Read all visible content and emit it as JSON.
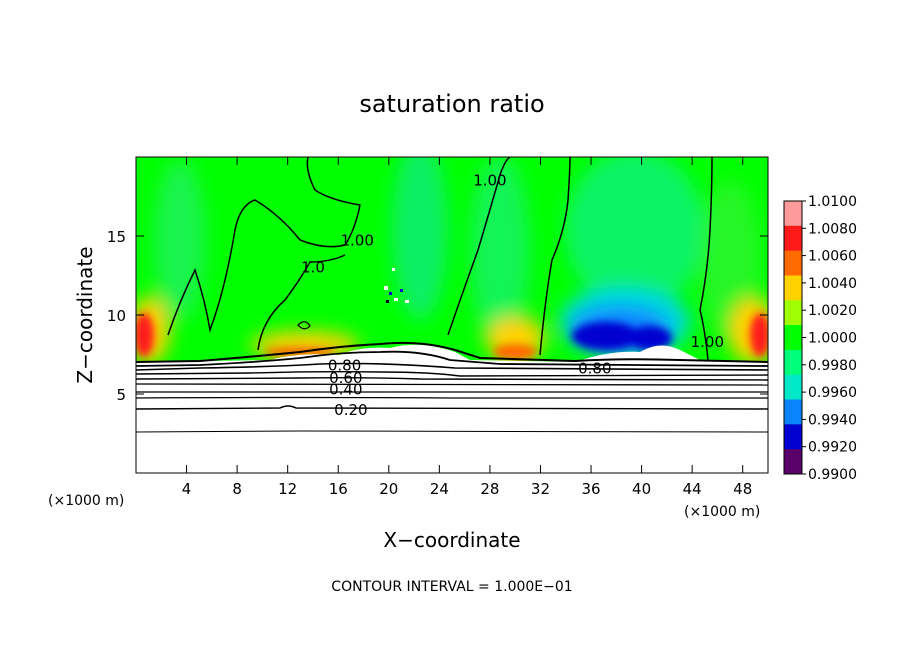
{
  "chart_data": {
    "type": "heatmap",
    "title": "saturation ratio",
    "xlabel": "X−coordinate",
    "ylabel": "Z−coordinate",
    "x_unit_label": "(×1000 m)",
    "y_unit_label": "(×1000 m)",
    "xlim": [
      0,
      50
    ],
    "ylim": [
      0,
      20
    ],
    "x_ticks": [
      "4",
      "8",
      "12",
      "16",
      "20",
      "24",
      "28",
      "32",
      "36",
      "40",
      "44",
      "48"
    ],
    "x_tick_values": [
      4,
      8,
      12,
      16,
      20,
      24,
      28,
      32,
      36,
      40,
      44,
      48
    ],
    "y_ticks": [
      "5",
      "10",
      "15"
    ],
    "y_tick_values": [
      5,
      10,
      15
    ],
    "contour_note": "CONTOUR INTERVAL = 1.000E−01",
    "contour_labels": [
      {
        "text": "1.00",
        "x": 28.0,
        "z": 18.5
      },
      {
        "text": "1.00",
        "x": 17.5,
        "z": 14.7
      },
      {
        "text": "1.0",
        "x": 14.0,
        "z": 13.0
      },
      {
        "text": "1.00",
        "x": 45.2,
        "z": 8.3
      },
      {
        "text": "0.80",
        "x": 16.5,
        "z": 6.8
      },
      {
        "text": "0.60",
        "x": 16.6,
        "z": 6.0
      },
      {
        "text": "0.40",
        "x": 16.6,
        "z": 5.3
      },
      {
        "text": "0.20",
        "x": 17.0,
        "z": 4.0
      },
      {
        "text": "0.80",
        "x": 36.3,
        "z": 6.6
      }
    ],
    "colorbar": {
      "levels": [
        "1.0100",
        "1.0080",
        "1.0060",
        "1.0040",
        "1.0020",
        "1.0000",
        "0.9980",
        "0.9960",
        "0.9940",
        "0.9920",
        "0.9900"
      ],
      "colors": [
        "#ff9a9a",
        "#ff1a1a",
        "#ff6a00",
        "#ffd200",
        "#a0ff00",
        "#00ff00",
        "#00ff7a",
        "#00e8c8",
        "#0a84ff",
        "#0000d0",
        "#5a006a"
      ]
    }
  }
}
